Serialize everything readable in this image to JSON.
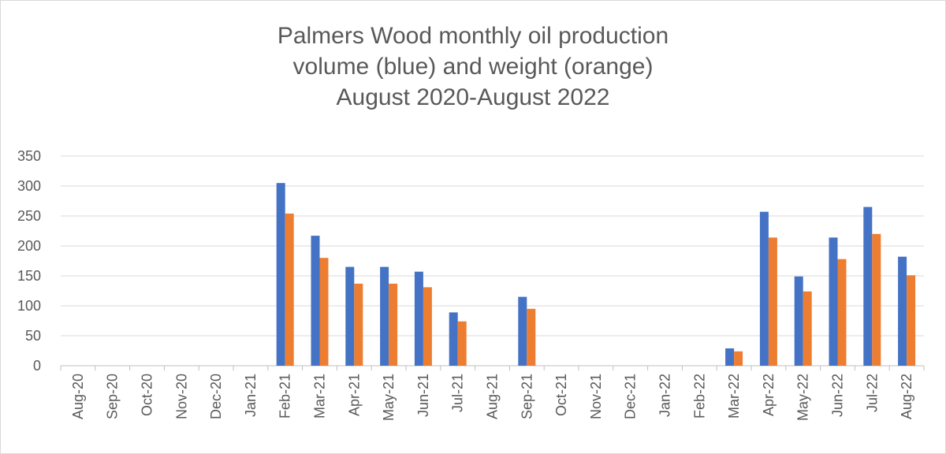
{
  "chart_data": {
    "type": "bar",
    "title_lines": [
      "Palmers Wood monthly oil production",
      "volume (blue) and weight (orange)",
      "August 2020-August 2022"
    ],
    "categories": [
      "Aug-20",
      "Sep-20",
      "Oct-20",
      "Nov-20",
      "Dec-20",
      "Jan-21",
      "Feb-21",
      "Mar-21",
      "Apr-21",
      "May-21",
      "Jun-21",
      "Jul-21",
      "Aug-21",
      "Sep-21",
      "Oct-21",
      "Nov-21",
      "Dec-21",
      "Jan-22",
      "Feb-22",
      "Mar-22",
      "Apr-22",
      "May-22",
      "Jun-22",
      "Jul-22",
      "Aug-22"
    ],
    "series": [
      {
        "color": "#4472C4",
        "values": [
          0,
          0,
          0,
          0,
          0,
          0,
          305,
          217,
          165,
          165,
          157,
          89,
          0,
          115,
          0,
          0,
          0,
          0,
          0,
          29,
          257,
          149,
          214,
          265,
          182
        ]
      },
      {
        "color": "#ED7D31",
        "values": [
          0,
          0,
          0,
          0,
          0,
          0,
          254,
          180,
          137,
          137,
          131,
          74,
          0,
          95,
          0,
          0,
          0,
          0,
          0,
          24,
          214,
          124,
          178,
          220,
          151
        ]
      }
    ],
    "ylim": [
      0,
      350
    ],
    "yticks": [
      0,
      50,
      100,
      150,
      200,
      250,
      300,
      350
    ],
    "grid": true,
    "legend": "none"
  }
}
